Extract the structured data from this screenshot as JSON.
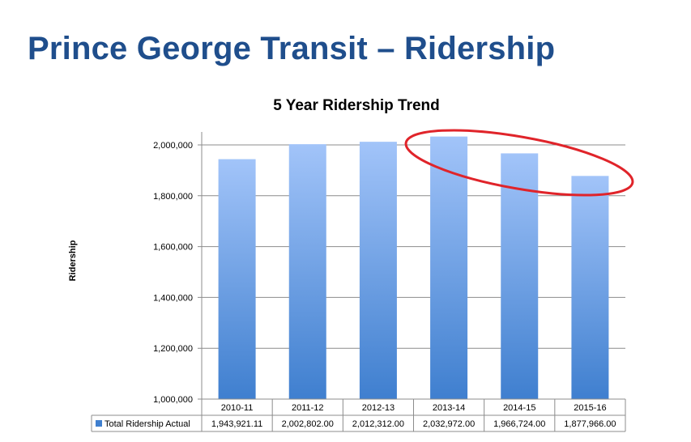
{
  "title": "Prince George Transit – Ridership",
  "chart_data": {
    "type": "bar",
    "title": "5 Year Ridership Trend",
    "xlabel": "",
    "ylabel": "Ridership",
    "categories": [
      "2010-11",
      "2011-12",
      "2012-13",
      "2013-14",
      "2014-15",
      "2015-16"
    ],
    "series": [
      {
        "name": "Total Ridership Actual",
        "values": [
          1943921.11,
          2002802.0,
          2012312.0,
          2032972.0,
          1966724.0,
          1877966.0
        ],
        "display": [
          "1,943,921.11",
          "2,002,802.00",
          "2,012,312.00",
          "2,032,972.00",
          "1,966,724.00",
          "1,877,966.00"
        ]
      }
    ],
    "ylim": [
      1000000,
      2000000
    ],
    "yticks": [
      "1,000,000",
      "1,200,000",
      "1,400,000",
      "1,600,000",
      "1,800,000",
      "2,000,000"
    ],
    "ytick_values": [
      1000000,
      1200000,
      1400000,
      1600000,
      1800000,
      2000000
    ],
    "grid": true,
    "data_table": true,
    "annotation": "red ellipse highlighting 2013-14 through 2015-16",
    "colors": {
      "bar_top": "#a2c4f9",
      "bar_bottom": "#3f7fcf",
      "annotation": "#e0242a",
      "title": "#1f4e8c"
    }
  }
}
